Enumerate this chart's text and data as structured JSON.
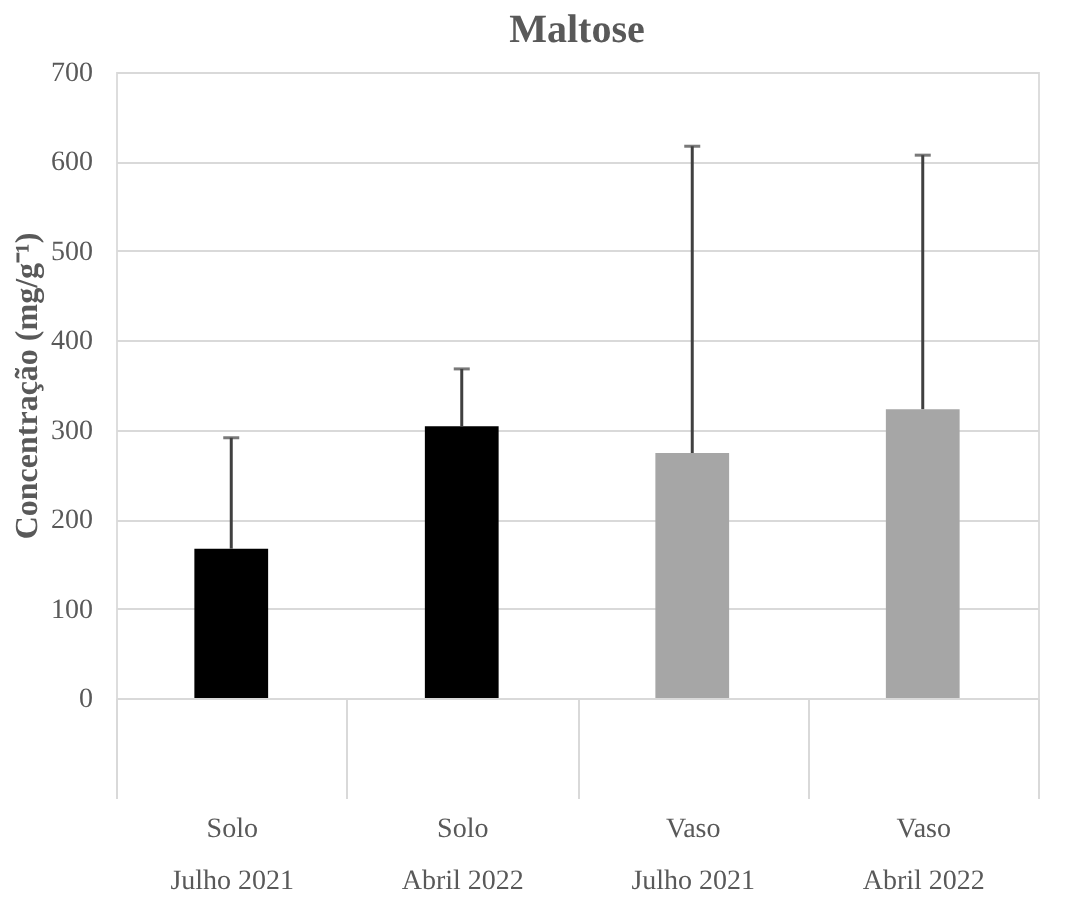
{
  "chart_data": {
    "type": "bar",
    "title": "Maltose",
    "ylabel": "Concentração (mg/g⁻¹)",
    "categories": [
      "Solo\nJulho 2021",
      "Solo\nAbril 2022",
      "Vaso\nJulho 2021",
      "Vaso\nAbril 2022"
    ],
    "values": [
      167,
      304,
      274,
      323
    ],
    "colors": [
      "#000000",
      "#000000",
      "#a6a6a6",
      "#a6a6a6"
    ],
    "errors": [
      [
        167,
        291
      ],
      [
        304,
        368
      ],
      [
        274,
        617
      ],
      [
        323,
        607
      ]
    ],
    "ylim": [
      0,
      700
    ],
    "yticks": [
      0,
      100,
      200,
      300,
      400,
      500,
      600,
      700
    ],
    "grid": "y"
  }
}
